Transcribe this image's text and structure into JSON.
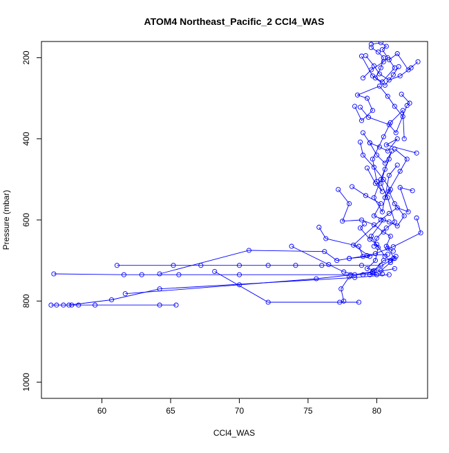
{
  "chart_data": {
    "type": "scatter",
    "title": "ATOM4 Northeast_Pacific_2 CCl4_WAS",
    "xlabel": "CCl4_WAS",
    "ylabel": "Pressure (mbar)",
    "xlim": [
      55.6,
      83.7
    ],
    "ylim": [
      1040,
      160
    ],
    "y_reversed": true,
    "grid": false,
    "legend": "none",
    "x_ticks": [
      "60",
      "65",
      "70",
      "75",
      "80"
    ],
    "x_tick_values": [
      60,
      65,
      70,
      75,
      80
    ],
    "y_ticks": [
      "200",
      "400",
      "600",
      "800",
      "1000"
    ],
    "y_tick_values": [
      200,
      400,
      600,
      800,
      1000
    ],
    "colors": {
      "series": "#0000ff",
      "axis": "#000000"
    },
    "series": [
      {
        "style": "line+points",
        "points": [
          [
            56.3,
            810
          ],
          [
            56.7,
            810
          ],
          [
            57.2,
            810
          ],
          [
            57.8,
            810
          ],
          [
            58.3,
            810
          ],
          [
            59.5,
            810
          ],
          [
            64.2,
            810
          ],
          [
            65.4,
            810
          ]
        ]
      },
      {
        "style": "line+points",
        "points": [
          [
            57.6,
            810
          ],
          [
            60.7,
            797
          ],
          [
            64.2,
            770
          ],
          [
            78.4,
            742
          ],
          [
            80.9,
            735
          ]
        ]
      },
      {
        "style": "line+points",
        "points": [
          [
            56.5,
            733
          ],
          [
            61.6,
            735
          ],
          [
            62.9,
            735
          ],
          [
            65.6,
            735
          ],
          [
            70.0,
            735
          ],
          [
            78.1,
            735
          ],
          [
            79.0,
            735
          ],
          [
            80.4,
            733
          ]
        ]
      },
      {
        "style": "line+points",
        "points": [
          [
            68.2,
            727
          ],
          [
            72.1,
            803
          ],
          [
            78.7,
            803
          ]
        ]
      },
      {
        "style": "line+points",
        "points": [
          [
            77.3,
            803
          ],
          [
            77.6,
            800
          ],
          [
            77.4,
            770
          ],
          [
            78.0,
            740
          ]
        ]
      },
      {
        "style": "line+points",
        "points": [
          [
            61.7,
            782
          ],
          [
            70.0,
            760
          ],
          [
            75.6,
            745
          ],
          [
            79.7,
            730
          ],
          [
            81.3,
            720
          ]
        ]
      },
      {
        "style": "line+points",
        "points": [
          [
            61.1,
            712
          ],
          [
            65.2,
            712
          ],
          [
            67.2,
            712
          ],
          [
            70.0,
            712
          ],
          [
            72.1,
            712
          ],
          [
            74.1,
            712
          ],
          [
            76.0,
            712
          ],
          [
            78.9,
            712
          ],
          [
            80.3,
            712
          ]
        ]
      },
      {
        "style": "line+points",
        "points": [
          [
            64.2,
            733
          ],
          [
            70.7,
            675
          ],
          [
            76.2,
            678
          ],
          [
            77.1,
            700
          ],
          [
            78.0,
            695
          ],
          [
            79.3,
            688
          ],
          [
            80.8,
            685
          ]
        ]
      },
      {
        "style": "line+points",
        "points": [
          [
            73.8,
            665
          ],
          [
            76.5,
            710
          ],
          [
            77.6,
            728
          ],
          [
            78.4,
            735
          ],
          [
            79.7,
            727
          ],
          [
            81.2,
            695
          ]
        ]
      },
      {
        "style": "line+points",
        "points": [
          [
            75.8,
            618
          ],
          [
            76.3,
            646
          ],
          [
            78.7,
            665
          ],
          [
            79.0,
            690
          ],
          [
            79.9,
            683
          ],
          [
            81.2,
            666
          ],
          [
            83.2,
            632
          ],
          [
            82.9,
            595
          ]
        ]
      },
      {
        "style": "line+points",
        "points": [
          [
            78.0,
            695
          ],
          [
            79.5,
            690
          ],
          [
            78.3,
            662
          ],
          [
            80.3,
            600
          ],
          [
            80.9,
            584
          ],
          [
            81.5,
            570
          ],
          [
            82.3,
            580
          ],
          [
            81.7,
            520
          ],
          [
            82.6,
            528
          ]
        ]
      },
      {
        "style": "line+points",
        "points": [
          [
            77.2,
            525
          ],
          [
            78.0,
            560
          ],
          [
            77.5,
            603
          ],
          [
            78.9,
            600
          ],
          [
            79.8,
            612
          ],
          [
            80.5,
            630
          ],
          [
            81.0,
            640
          ],
          [
            80.7,
            665
          ],
          [
            81.2,
            677
          ]
        ]
      },
      {
        "style": "line+points",
        "points": [
          [
            78.2,
            518
          ],
          [
            79.2,
            540
          ],
          [
            80.3,
            560
          ],
          [
            79.8,
            590
          ],
          [
            80.9,
            605
          ],
          [
            81.5,
            615
          ],
          [
            82.0,
            590
          ],
          [
            81.3,
            560
          ],
          [
            80.9,
            530
          ]
        ]
      },
      {
        "style": "line+points",
        "points": [
          [
            78.8,
            408
          ],
          [
            79.0,
            440
          ],
          [
            79.8,
            470
          ],
          [
            80.5,
            500
          ],
          [
            81.0,
            525
          ],
          [
            80.6,
            545
          ],
          [
            81.7,
            480
          ],
          [
            82.2,
            450
          ],
          [
            81.3,
            425
          ]
        ]
      },
      {
        "style": "line+points",
        "points": [
          [
            79.0,
            385
          ],
          [
            79.5,
            410
          ],
          [
            80.2,
            420
          ],
          [
            80.8,
            430
          ],
          [
            81.5,
            400
          ],
          [
            80.7,
            415
          ],
          [
            82.9,
            435
          ]
        ]
      },
      {
        "style": "line+points",
        "points": [
          [
            78.4,
            320
          ],
          [
            78.9,
            355
          ],
          [
            79.7,
            330
          ],
          [
            79.3,
            300
          ],
          [
            78.6,
            292
          ],
          [
            80.2,
            270
          ],
          [
            80.8,
            295
          ],
          [
            81.3,
            320
          ],
          [
            81.9,
            345
          ]
        ]
      },
      {
        "style": "line+points",
        "points": [
          [
            78.8,
            322
          ],
          [
            79.4,
            347
          ],
          [
            80.9,
            365
          ],
          [
            81.4,
            385
          ],
          [
            82.2,
            318
          ],
          [
            82.4,
            312
          ],
          [
            81.8,
            290
          ]
        ]
      },
      {
        "style": "line+points",
        "points": [
          [
            79.0,
            250
          ],
          [
            79.6,
            230
          ],
          [
            80.5,
            210
          ],
          [
            80.8,
            200
          ],
          [
            80.4,
            180
          ],
          [
            80.7,
            172
          ],
          [
            80.3,
            163
          ],
          [
            79.6,
            167
          ]
        ]
      },
      {
        "style": "line+points",
        "points": [
          [
            78.9,
            196
          ],
          [
            79.7,
            245
          ],
          [
            80.4,
            260
          ],
          [
            81.3,
            225
          ],
          [
            80.9,
            205
          ],
          [
            81.5,
            190
          ],
          [
            82.3,
            230
          ],
          [
            83.0,
            210
          ]
        ]
      },
      {
        "style": "line+points",
        "points": [
          [
            79.2,
            195
          ],
          [
            79.8,
            220
          ],
          [
            80.2,
            240
          ],
          [
            80.9,
            255
          ],
          [
            81.7,
            245
          ],
          [
            82.5,
            225
          ]
        ]
      },
      {
        "style": "line+points",
        "points": [
          [
            79.6,
            175
          ],
          [
            80.1,
            186
          ],
          [
            80.5,
            200
          ],
          [
            80.3,
            225
          ],
          [
            79.9,
            250
          ],
          [
            80.6,
            268
          ],
          [
            81.2,
            242
          ],
          [
            81.6,
            222
          ]
        ]
      },
      {
        "style": "line+points",
        "points": [
          [
            79.5,
            410
          ],
          [
            80.0,
            440
          ],
          [
            80.6,
            460
          ],
          [
            81.1,
            430
          ],
          [
            80.3,
            500
          ],
          [
            79.8,
            545
          ],
          [
            80.4,
            580
          ],
          [
            80.9,
            490
          ],
          [
            81.5,
            465
          ]
        ]
      },
      {
        "style": "line+points",
        "points": [
          [
            79.3,
            472
          ],
          [
            79.9,
            510
          ],
          [
            80.4,
            530
          ],
          [
            80.0,
            505
          ],
          [
            79.7,
            450
          ],
          [
            80.5,
            395
          ],
          [
            81.0,
            360
          ],
          [
            81.9,
            330
          ],
          [
            82.0,
            400
          ]
        ]
      },
      {
        "style": "line+points",
        "points": [
          [
            80.5,
            600
          ],
          [
            79.6,
            640
          ],
          [
            80.1,
            668
          ],
          [
            79.9,
            700
          ],
          [
            79.3,
            720
          ],
          [
            80.3,
            725
          ],
          [
            81.0,
            705
          ],
          [
            81.4,
            690
          ]
        ]
      },
      {
        "style": "line+points",
        "points": [
          [
            79.8,
            665
          ],
          [
            80.0,
            645
          ],
          [
            80.7,
            620
          ],
          [
            81.3,
            605
          ],
          [
            80.8,
            545
          ],
          [
            80.3,
            510
          ],
          [
            80.6,
            475
          ],
          [
            80.9,
            450
          ]
        ]
      },
      {
        "style": "line+points",
        "points": [
          [
            79.1,
            610
          ],
          [
            78.8,
            620
          ],
          [
            79.5,
            648
          ],
          [
            80.0,
            660
          ],
          [
            80.6,
            690
          ],
          [
            81.0,
            700
          ]
        ]
      },
      {
        "style": "line+points",
        "points": [
          [
            80.0,
            735
          ],
          [
            79.5,
            735
          ],
          [
            79.8,
            725
          ],
          [
            80.5,
            700
          ],
          [
            81.3,
            695
          ],
          [
            80.8,
            670
          ]
        ]
      }
    ]
  }
}
